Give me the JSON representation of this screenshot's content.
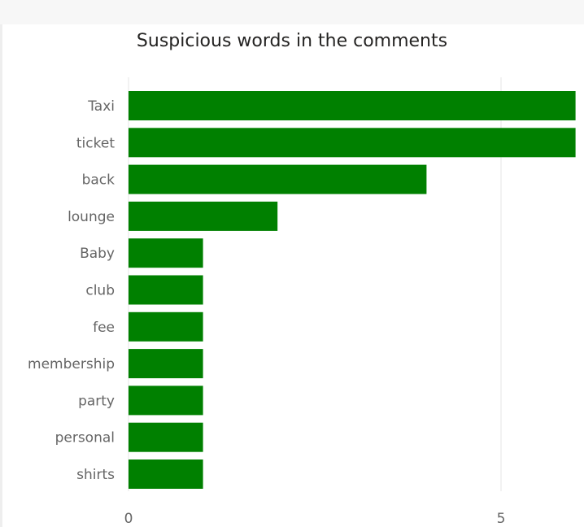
{
  "chart_data": {
    "type": "bar",
    "orientation": "horizontal",
    "title": "Suspicious words in the comments",
    "xlabel": "",
    "ylabel": "",
    "categories": [
      "Taxi",
      "ticket",
      "back",
      "lounge",
      "Baby",
      "club",
      "fee",
      "membership",
      "party",
      "personal",
      "shirts"
    ],
    "values": [
      6,
      6,
      4,
      2,
      1,
      1,
      1,
      1,
      1,
      1,
      1
    ],
    "x_ticks": [
      "0",
      "5"
    ],
    "xlim": [
      0,
      6
    ],
    "grid": true,
    "bar_color": "#008000"
  }
}
